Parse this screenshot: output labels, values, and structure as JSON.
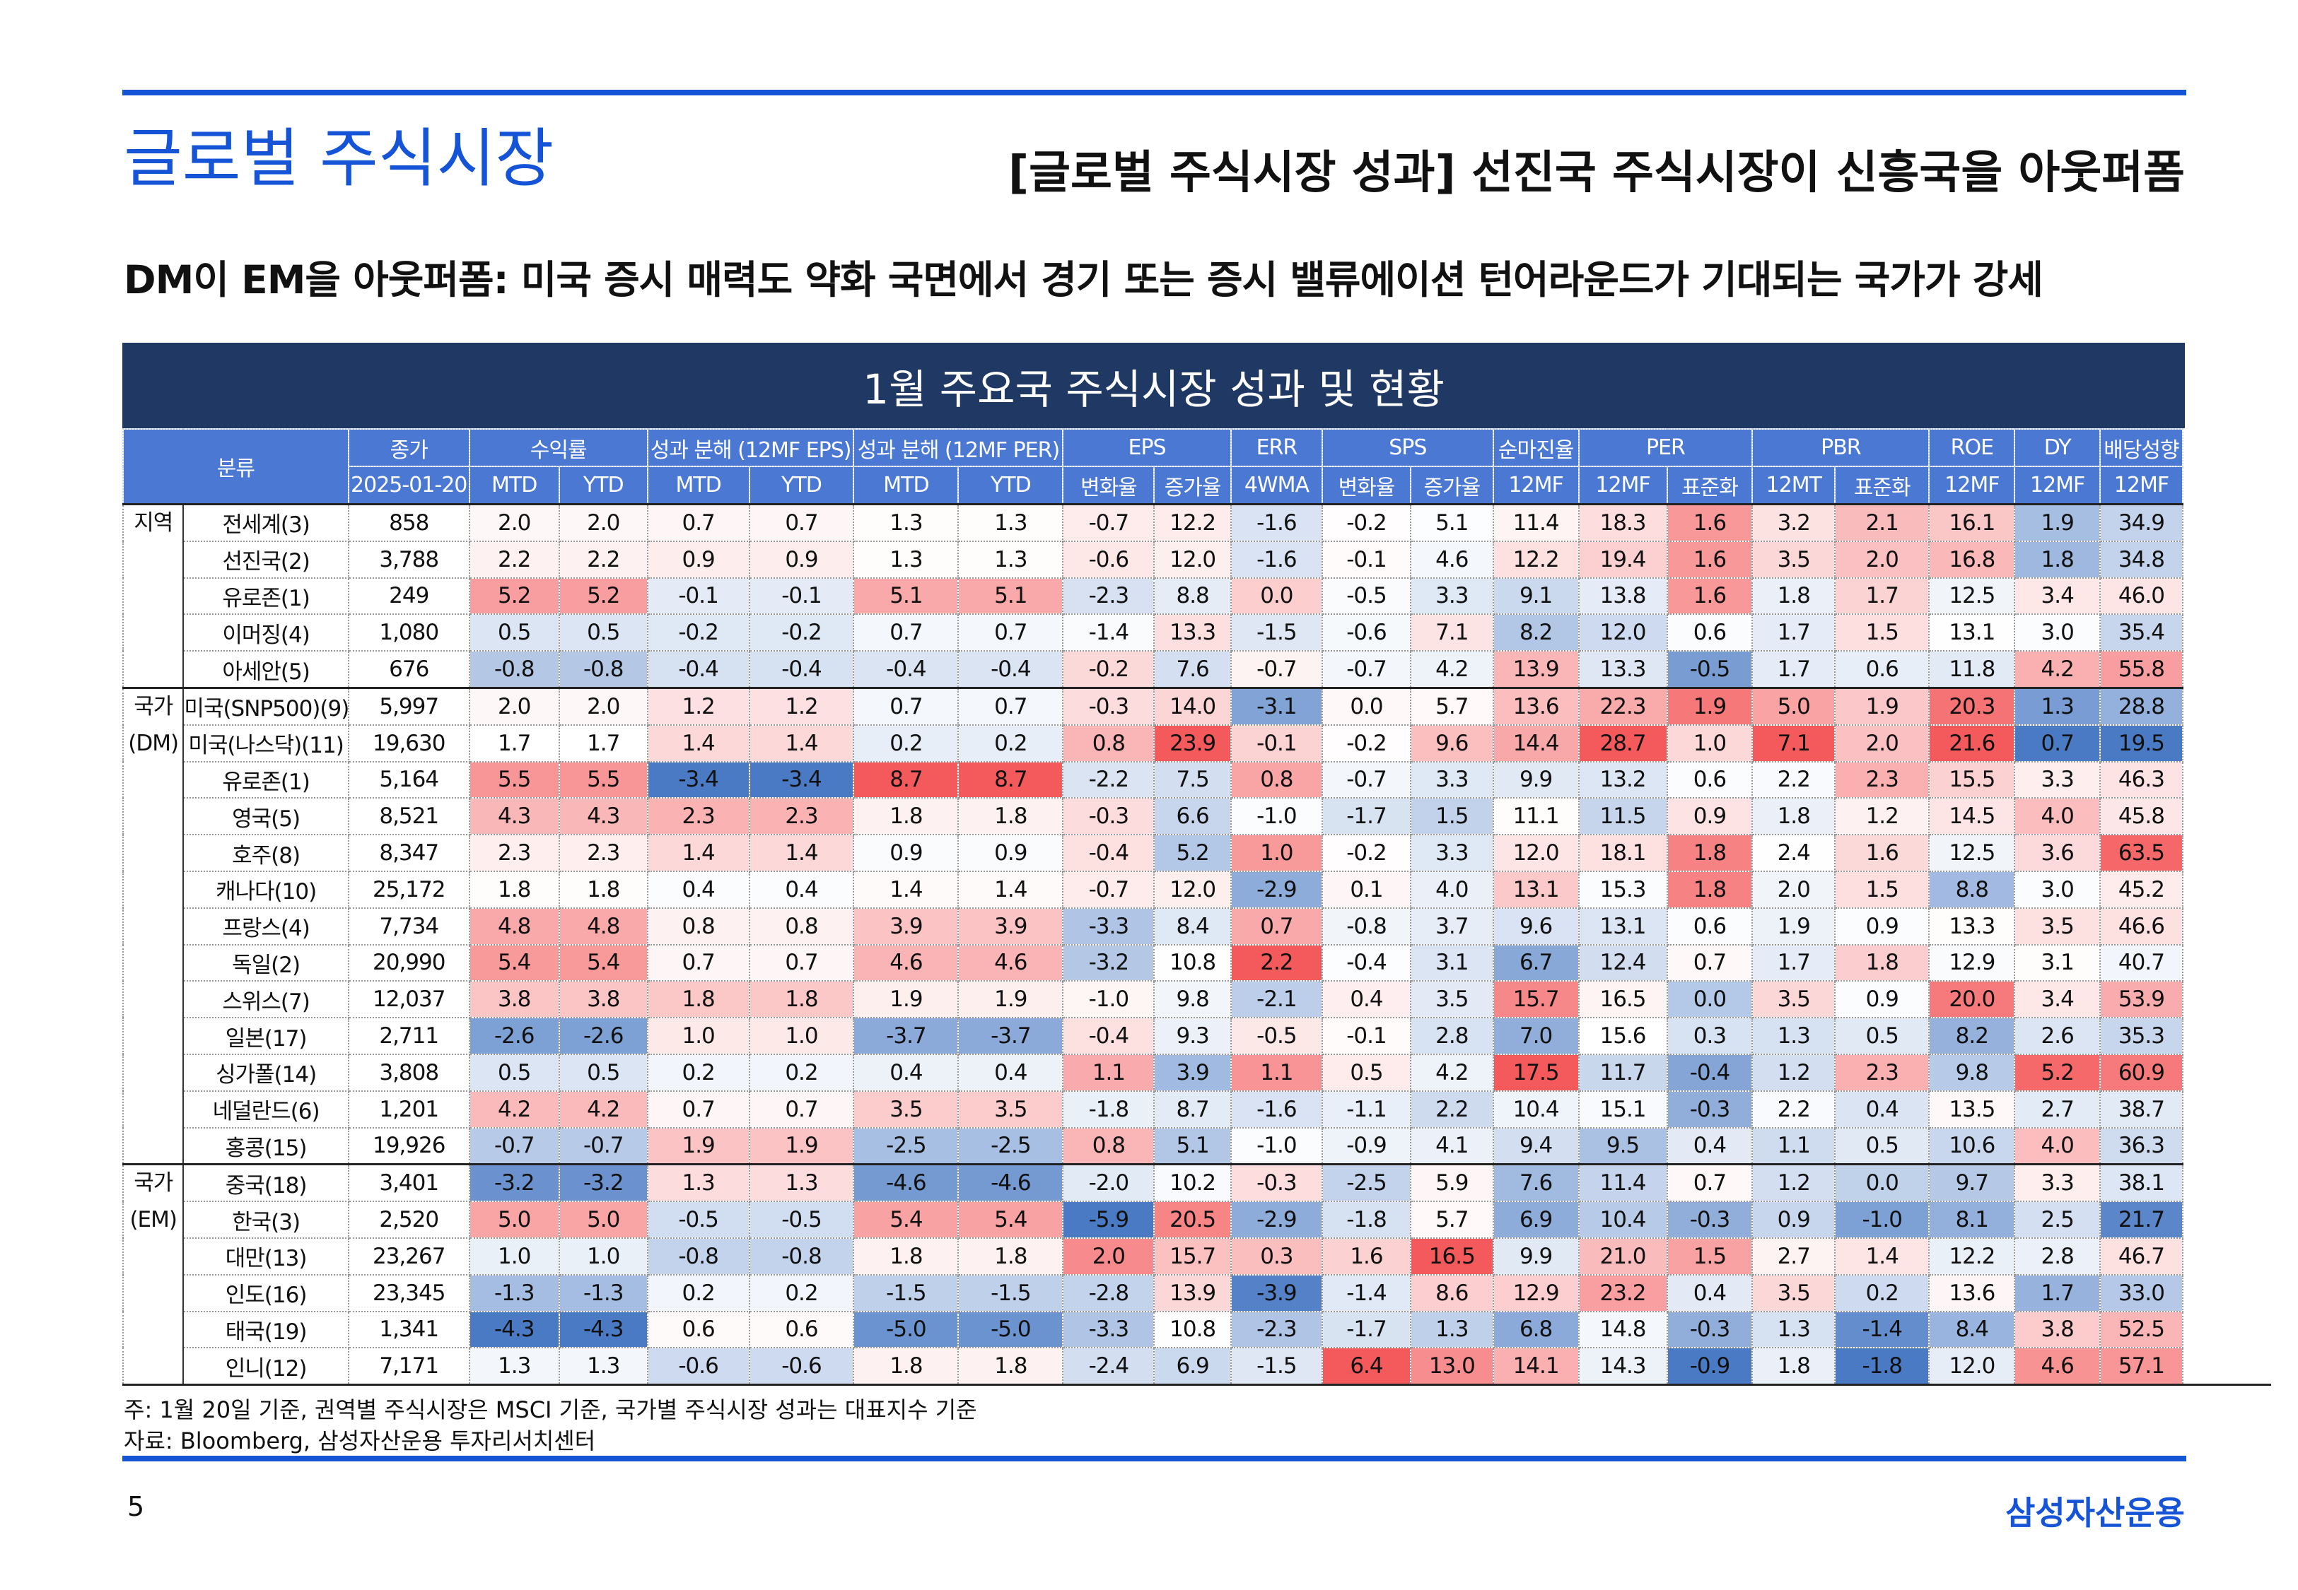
{
  "header": {
    "title": "글로벌 주식시장",
    "headline": "[글로벌 주식시장 성과] 선진국 주식시장이 신흥국을 아웃퍼폼"
  },
  "subtitle": "DM이 EM을 아웃퍼폼: 미국 증시 매력도 약화 국면에서 경기 또는 증시 밸류에이션 턴어라운드가 기대되는 국가가 강세",
  "table": {
    "title": "1월 주요국 주식시장 성과 및 현황",
    "category_header": "분류",
    "columns": [
      {
        "label": "종가",
        "subs": [
          "2025-01-20"
        ]
      },
      {
        "label": "수익률",
        "subs": [
          "MTD",
          "YTD"
        ]
      },
      {
        "label": "성과 분해 (12MF EPS)",
        "subs": [
          "MTD",
          "YTD"
        ]
      },
      {
        "label": "성과 분해 (12MF PER)",
        "subs": [
          "MTD",
          "YTD"
        ]
      },
      {
        "label": "EPS",
        "subs": [
          "변화율",
          "증가율"
        ]
      },
      {
        "label": "ERR",
        "subs": [
          "4WMA"
        ]
      },
      {
        "label": "SPS",
        "subs": [
          "변화율",
          "증가율"
        ]
      },
      {
        "label": "순마진율",
        "subs": [
          "12MF"
        ]
      },
      {
        "label": "PER",
        "subs": [
          "12MF",
          "표준화"
        ]
      },
      {
        "label": "PBR",
        "subs": [
          "12MT",
          "표준화"
        ]
      },
      {
        "label": "ROE",
        "subs": [
          "12MF"
        ]
      },
      {
        "label": "DY",
        "subs": [
          "12MF"
        ]
      },
      {
        "label": "배당성향",
        "subs": [
          "12MF"
        ]
      }
    ],
    "groups": [
      {
        "label": [
          "지역"
        ],
        "rows": [
          {
            "name": "전세계(3)",
            "values": [
              "858",
              "2.0",
              "2.0",
              "0.7",
              "0.7",
              "1.3",
              "1.3",
              "-0.7",
              "12.2",
              "-1.6",
              "-0.2",
              "5.1",
              "11.4",
              "18.3",
              "1.6",
              "3.2",
              "2.1",
              "16.1",
              "1.9",
              "34.9"
            ]
          },
          {
            "name": "선진국(2)",
            "values": [
              "3,788",
              "2.2",
              "2.2",
              "0.9",
              "0.9",
              "1.3",
              "1.3",
              "-0.6",
              "12.0",
              "-1.6",
              "-0.1",
              "4.6",
              "12.2",
              "19.4",
              "1.6",
              "3.5",
              "2.0",
              "16.8",
              "1.8",
              "34.8"
            ]
          },
          {
            "name": "유로존(1)",
            "values": [
              "249",
              "5.2",
              "5.2",
              "-0.1",
              "-0.1",
              "5.1",
              "5.1",
              "-2.3",
              "8.8",
              "0.0",
              "-0.5",
              "3.3",
              "9.1",
              "13.8",
              "1.6",
              "1.8",
              "1.7",
              "12.5",
              "3.4",
              "46.0"
            ]
          },
          {
            "name": "이머징(4)",
            "values": [
              "1,080",
              "0.5",
              "0.5",
              "-0.2",
              "-0.2",
              "0.7",
              "0.7",
              "-1.4",
              "13.3",
              "-1.5",
              "-0.6",
              "7.1",
              "8.2",
              "12.0",
              "0.6",
              "1.7",
              "1.5",
              "13.1",
              "3.0",
              "35.4"
            ]
          },
          {
            "name": "아세안(5)",
            "values": [
              "676",
              "-0.8",
              "-0.8",
              "-0.4",
              "-0.4",
              "-0.4",
              "-0.4",
              "-0.2",
              "7.6",
              "-0.7",
              "-0.7",
              "4.2",
              "13.9",
              "13.3",
              "-0.5",
              "1.7",
              "0.6",
              "11.8",
              "4.2",
              "55.8"
            ]
          }
        ]
      },
      {
        "label": [
          "국가",
          "(DM)"
        ],
        "rows": [
          {
            "name": "미국(SNP500)(9)",
            "values": [
              "5,997",
              "2.0",
              "2.0",
              "1.2",
              "1.2",
              "0.7",
              "0.7",
              "-0.3",
              "14.0",
              "-3.1",
              "0.0",
              "5.7",
              "13.6",
              "22.3",
              "1.9",
              "5.0",
              "1.9",
              "20.3",
              "1.3",
              "28.8"
            ]
          },
          {
            "name": "미국(나스닥)(11)",
            "values": [
              "19,630",
              "1.7",
              "1.7",
              "1.4",
              "1.4",
              "0.2",
              "0.2",
              "0.8",
              "23.9",
              "-0.1",
              "-0.2",
              "9.6",
              "14.4",
              "28.7",
              "1.0",
              "7.1",
              "2.0",
              "21.6",
              "0.7",
              "19.5"
            ]
          },
          {
            "name": "유로존(1)",
            "values": [
              "5,164",
              "5.5",
              "5.5",
              "-3.4",
              "-3.4",
              "8.7",
              "8.7",
              "-2.2",
              "7.5",
              "0.8",
              "-0.7",
              "3.3",
              "9.9",
              "13.2",
              "0.6",
              "2.2",
              "2.3",
              "15.5",
              "3.3",
              "46.3"
            ]
          },
          {
            "name": "영국(5)",
            "values": [
              "8,521",
              "4.3",
              "4.3",
              "2.3",
              "2.3",
              "1.8",
              "1.8",
              "-0.3",
              "6.6",
              "-1.0",
              "-1.7",
              "1.5",
              "11.1",
              "11.5",
              "0.9",
              "1.8",
              "1.2",
              "14.5",
              "4.0",
              "45.8"
            ]
          },
          {
            "name": "호주(8)",
            "values": [
              "8,347",
              "2.3",
              "2.3",
              "1.4",
              "1.4",
              "0.9",
              "0.9",
              "-0.4",
              "5.2",
              "1.0",
              "-0.2",
              "3.3",
              "12.0",
              "18.1",
              "1.8",
              "2.4",
              "1.6",
              "12.5",
              "3.6",
              "63.5"
            ]
          },
          {
            "name": "캐나다(10)",
            "values": [
              "25,172",
              "1.8",
              "1.8",
              "0.4",
              "0.4",
              "1.4",
              "1.4",
              "-0.7",
              "12.0",
              "-2.9",
              "0.1",
              "4.0",
              "13.1",
              "15.3",
              "1.8",
              "2.0",
              "1.5",
              "8.8",
              "3.0",
              "45.2"
            ]
          },
          {
            "name": "프랑스(4)",
            "values": [
              "7,734",
              "4.8",
              "4.8",
              "0.8",
              "0.8",
              "3.9",
              "3.9",
              "-3.3",
              "8.4",
              "0.7",
              "-0.8",
              "3.7",
              "9.6",
              "13.1",
              "0.6",
              "1.9",
              "0.9",
              "13.3",
              "3.5",
              "46.6"
            ]
          },
          {
            "name": "독일(2)",
            "values": [
              "20,990",
              "5.4",
              "5.4",
              "0.7",
              "0.7",
              "4.6",
              "4.6",
              "-3.2",
              "10.8",
              "2.2",
              "-0.4",
              "3.1",
              "6.7",
              "12.4",
              "0.7",
              "1.7",
              "1.8",
              "12.9",
              "3.1",
              "40.7"
            ]
          },
          {
            "name": "스위스(7)",
            "values": [
              "12,037",
              "3.8",
              "3.8",
              "1.8",
              "1.8",
              "1.9",
              "1.9",
              "-1.0",
              "9.8",
              "-2.1",
              "0.4",
              "3.5",
              "15.7",
              "16.5",
              "0.0",
              "3.5",
              "0.9",
              "20.0",
              "3.4",
              "53.9"
            ]
          },
          {
            "name": "일본(17)",
            "values": [
              "2,711",
              "-2.6",
              "-2.6",
              "1.0",
              "1.0",
              "-3.7",
              "-3.7",
              "-0.4",
              "9.3",
              "-0.5",
              "-0.1",
              "2.8",
              "7.0",
              "15.6",
              "0.3",
              "1.3",
              "0.5",
              "8.2",
              "2.6",
              "35.3"
            ]
          },
          {
            "name": "싱가폴(14)",
            "values": [
              "3,808",
              "0.5",
              "0.5",
              "0.2",
              "0.2",
              "0.4",
              "0.4",
              "1.1",
              "3.9",
              "1.1",
              "0.5",
              "4.2",
              "17.5",
              "11.7",
              "-0.4",
              "1.2",
              "2.3",
              "9.8",
              "5.2",
              "60.9"
            ]
          },
          {
            "name": "네덜란드(6)",
            "values": [
              "1,201",
              "4.2",
              "4.2",
              "0.7",
              "0.7",
              "3.5",
              "3.5",
              "-1.8",
              "8.7",
              "-1.6",
              "-1.1",
              "2.2",
              "10.4",
              "15.1",
              "-0.3",
              "2.2",
              "0.4",
              "13.5",
              "2.7",
              "38.7"
            ]
          },
          {
            "name": "홍콩(15)",
            "values": [
              "19,926",
              "-0.7",
              "-0.7",
              "1.9",
              "1.9",
              "-2.5",
              "-2.5",
              "0.8",
              "5.1",
              "-1.0",
              "-0.9",
              "4.1",
              "9.4",
              "9.5",
              "0.4",
              "1.1",
              "0.5",
              "10.6",
              "4.0",
              "36.3"
            ]
          }
        ]
      },
      {
        "label": [
          "국가",
          "(EM)"
        ],
        "rows": [
          {
            "name": "중국(18)",
            "values": [
              "3,401",
              "-3.2",
              "-3.2",
              "1.3",
              "1.3",
              "-4.6",
              "-4.6",
              "-2.0",
              "10.2",
              "-0.3",
              "-2.5",
              "5.9",
              "7.6",
              "11.4",
              "0.7",
              "1.2",
              "0.0",
              "9.7",
              "3.3",
              "38.1"
            ]
          },
          {
            "name": "한국(3)",
            "values": [
              "2,520",
              "5.0",
              "5.0",
              "-0.5",
              "-0.5",
              "5.4",
              "5.4",
              "-5.9",
              "20.5",
              "-2.9",
              "-1.8",
              "5.7",
              "6.9",
              "10.4",
              "-0.3",
              "0.9",
              "-1.0",
              "8.1",
              "2.5",
              "21.7"
            ]
          },
          {
            "name": "대만(13)",
            "values": [
              "23,267",
              "1.0",
              "1.0",
              "-0.8",
              "-0.8",
              "1.8",
              "1.8",
              "2.0",
              "15.7",
              "0.3",
              "1.6",
              "16.5",
              "9.9",
              "21.0",
              "1.5",
              "2.7",
              "1.4",
              "12.2",
              "2.8",
              "46.7"
            ]
          },
          {
            "name": "인도(16)",
            "values": [
              "23,345",
              "-1.3",
              "-1.3",
              "0.2",
              "0.2",
              "-1.5",
              "-1.5",
              "-2.8",
              "13.9",
              "-3.9",
              "-1.4",
              "8.6",
              "12.9",
              "23.2",
              "0.4",
              "3.5",
              "0.2",
              "13.6",
              "1.7",
              "33.0"
            ]
          },
          {
            "name": "태국(19)",
            "values": [
              "1,341",
              "-4.3",
              "-4.3",
              "0.6",
              "0.6",
              "-5.0",
              "-5.0",
              "-3.3",
              "10.8",
              "-2.3",
              "-1.7",
              "1.3",
              "6.8",
              "14.8",
              "-0.3",
              "1.3",
              "-1.4",
              "8.4",
              "3.8",
              "52.5"
            ]
          },
          {
            "name": "인니(12)",
            "values": [
              "7,171",
              "1.3",
              "1.3",
              "-0.6",
              "-0.6",
              "1.8",
              "1.8",
              "-2.4",
              "6.9",
              "-1.5",
              "6.4",
              "13.0",
              "14.1",
              "14.3",
              "-0.9",
              "1.8",
              "-1.8",
              "12.0",
              "4.6",
              "57.1"
            ]
          }
        ]
      }
    ]
  },
  "footnotes": [
    "주: 1월 20일 기준, 권역별 주식시장은 MSCI 기준, 국가별 주식시장 성과는 대표지수 기준",
    "자료: Bloomberg, 삼성자산운용 투자리서치센터"
  ],
  "footer": {
    "page": "5",
    "brand": "삼성자산운용"
  }
}
